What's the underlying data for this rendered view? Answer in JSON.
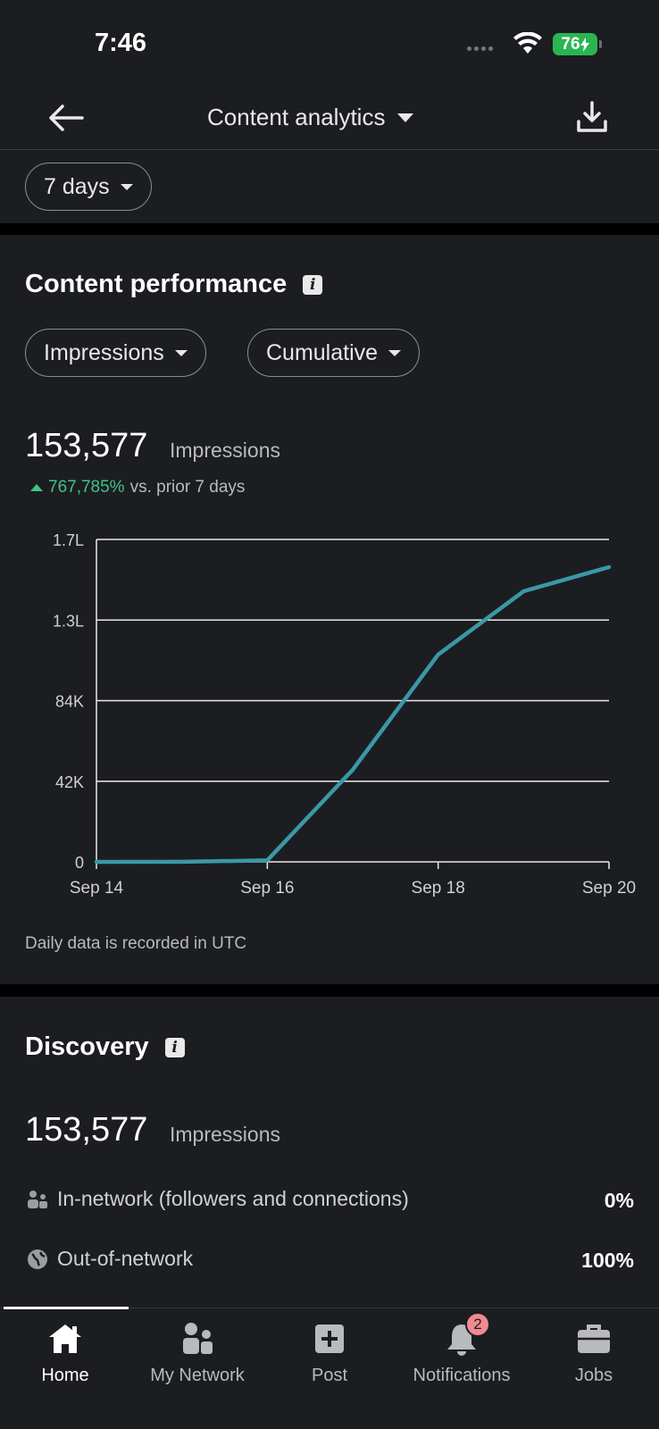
{
  "status_bar": {
    "time": "7:46",
    "battery": "76"
  },
  "header": {
    "title": "Content analytics"
  },
  "filters": {
    "range": "7 days",
    "metric": "Impressions",
    "mode": "Cumulative"
  },
  "performance": {
    "title": "Content performance",
    "total": "153,577",
    "total_label": "Impressions",
    "change_pct": "767,785%",
    "change_text": "vs. prior 7 days",
    "note": "Daily data is recorded in UTC"
  },
  "chart_data": {
    "type": "line",
    "x": [
      "Sep 14",
      "Sep 15",
      "Sep 16",
      "Sep 17",
      "Sep 18",
      "Sep 19",
      "Sep 20"
    ],
    "x_tick_labels": [
      "Sep 14",
      "Sep 16",
      "Sep 18",
      "Sep 20"
    ],
    "y_tick_labels": [
      "0",
      "42K",
      "84K",
      "1.3L",
      "1.7L"
    ],
    "ylim": [
      0,
      168000
    ],
    "series": [
      {
        "values": [
          20,
          30,
          800,
          48000,
          108000,
          141000,
          153577
        ],
        "color": "#3a98a6"
      }
    ],
    "grid": true
  },
  "discovery": {
    "title": "Discovery",
    "total": "153,577",
    "total_label": "Impressions",
    "rows": [
      {
        "label": "In-network (followers and connections)",
        "value": "0%",
        "icon": "people-icon"
      },
      {
        "label": "Out-of-network",
        "value": "100%",
        "icon": "globe-icon"
      }
    ]
  },
  "nav": {
    "items": [
      {
        "label": "Home",
        "icon": "home-icon"
      },
      {
        "label": "My Network",
        "icon": "network-icon"
      },
      {
        "label": "Post",
        "icon": "post-icon"
      },
      {
        "label": "Notifications",
        "icon": "bell-icon",
        "badge": "2"
      },
      {
        "label": "Jobs",
        "icon": "briefcase-icon"
      }
    ]
  }
}
